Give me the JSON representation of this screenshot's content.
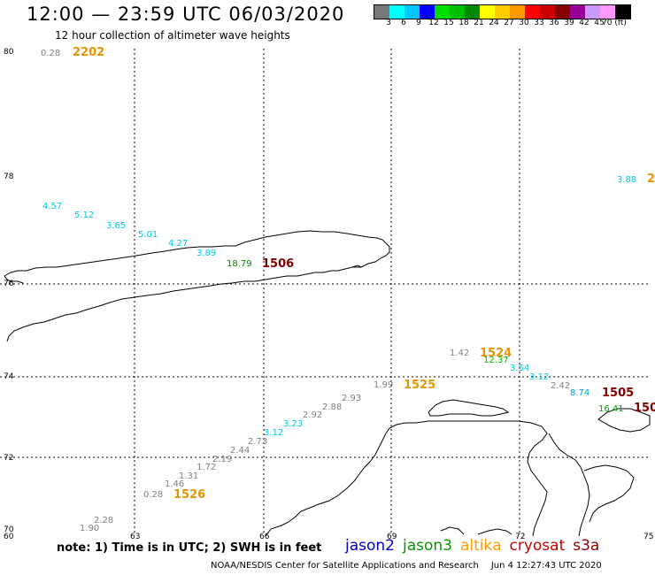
{
  "title": "12:00 — 23:59 UTC 06/03/2020",
  "subtitle": "12 hour collection of altimeter wave heights",
  "colorbar": {
    "colors": [
      "#777777",
      "#00ffff",
      "#00c8ff",
      "#0000ff",
      "#00e000",
      "#00c000",
      "#008800",
      "#ffff00",
      "#ffcc00",
      "#ff9900",
      "#ff0000",
      "#cc0000",
      "#880000",
      "#990099",
      "#cc99ff",
      "#ff99ff",
      "#000000"
    ],
    "labels": [
      "3",
      "6",
      "9",
      "12",
      "15",
      "18",
      "21",
      "24",
      "27",
      "30",
      "33",
      "36",
      "39",
      "42",
      "45",
      "70 (ft)"
    ]
  },
  "axes": {
    "lat_labels": [
      "80",
      "78",
      "76",
      "74",
      "72",
      "70"
    ],
    "lon_labels": [
      "60",
      "63",
      "66",
      "69",
      "72",
      "75"
    ]
  },
  "points": [
    {
      "text": "0.28",
      "color": "#808080"
    },
    {
      "text": "2202",
      "color": "#e69500"
    },
    {
      "text": "3.88",
      "color": "#00c8e6"
    },
    {
      "text": "2",
      "color": "#e69500"
    },
    {
      "text": "4.57",
      "color": "#00c8e6"
    },
    {
      "text": "5.12",
      "color": "#00c8e6"
    },
    {
      "text": "3.65",
      "color": "#00c8e6"
    },
    {
      "text": "5.01",
      "color": "#00c8e6"
    },
    {
      "text": "4.27",
      "color": "#00c8e6"
    },
    {
      "text": "3.89",
      "color": "#00c8e6"
    },
    {
      "text": "18.79",
      "color": "#008800"
    },
    {
      "text": "1506",
      "color": "#800000"
    },
    {
      "text": "1.42",
      "color": "#808080"
    },
    {
      "text": "1524",
      "color": "#e69500"
    },
    {
      "text": "12.37",
      "color": "#00c000"
    },
    {
      "text": "3.54",
      "color": "#00c8e6"
    },
    {
      "text": "3.12",
      "color": "#00c8e6"
    },
    {
      "text": "2.42",
      "color": "#808080"
    },
    {
      "text": "8.74",
      "color": "#00a0e6"
    },
    {
      "text": "1505",
      "color": "#800000"
    },
    {
      "text": "150",
      "color": "#800000"
    },
    {
      "text": "16.41",
      "color": "#00a000"
    },
    {
      "text": "1.99",
      "color": "#808080"
    },
    {
      "text": "1525",
      "color": "#e69500"
    },
    {
      "text": "2.93",
      "color": "#808080"
    },
    {
      "text": "2.88",
      "color": "#808080"
    },
    {
      "text": "2.92",
      "color": "#808080"
    },
    {
      "text": "3.23",
      "color": "#00c8e6"
    },
    {
      "text": "3.12",
      "color": "#00c8e6"
    },
    {
      "text": "2.73",
      "color": "#808080"
    },
    {
      "text": "2.44",
      "color": "#808080"
    },
    {
      "text": "2.19",
      "color": "#808080"
    },
    {
      "text": "1.72",
      "color": "#808080"
    },
    {
      "text": "1.31",
      "color": "#808080"
    },
    {
      "text": "1.46",
      "color": "#808080"
    },
    {
      "text": "0.28",
      "color": "#808080"
    },
    {
      "text": "1526",
      "color": "#e69500"
    },
    {
      "text": "2.28",
      "color": "#808080"
    },
    {
      "text": "1.90",
      "color": "#808080"
    }
  ],
  "note": "note:  1) Time is in UTC;  2) SWH is in feet",
  "legend": [
    {
      "name": "jason2",
      "color": "#0000cc"
    },
    {
      "name": "jason3",
      "color": "#009900"
    },
    {
      "name": "altika",
      "color": "#ff9900"
    },
    {
      "name": "cryosat",
      "color": "#cc0000"
    },
    {
      "name": "s3a",
      "color": "#880000"
    }
  ],
  "footer": {
    "credit": "NOAA/NESDIS Center for Satellite Applications and Research",
    "timestamp": "Jun  4 12:27:43 UTC 2020"
  }
}
